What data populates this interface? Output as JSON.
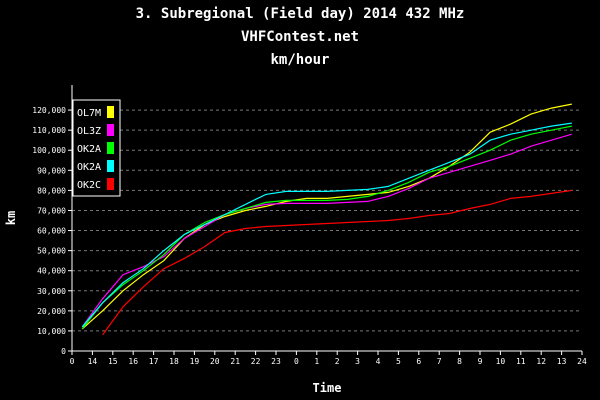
{
  "chart_data": {
    "type": "line",
    "title": "3. Subregional (Field day) 2014 432 MHz",
    "subtitle": "VHFContest.net",
    "unit_label": "km/hour",
    "xlabel": "Time",
    "ylabel": "km",
    "ylim": [
      0,
      130000
    ],
    "y_ticks": [
      "0",
      "10,000",
      "20,000",
      "30,000",
      "40,000",
      "50,000",
      "60,000",
      "70,000",
      "80,000",
      "90,000",
      "100,000",
      "110,000",
      "120,000"
    ],
    "x_ticks": [
      "0",
      "14",
      "15",
      "16",
      "17",
      "18",
      "19",
      "20",
      "21",
      "22",
      "23",
      "0",
      "1",
      "2",
      "3",
      "4",
      "5",
      "6",
      "7",
      "8",
      "9",
      "10",
      "11",
      "12",
      "13",
      "24"
    ],
    "grid": "horizontal-dashed",
    "legend_position": "top-left",
    "series": [
      {
        "name": "OL7M",
        "color": "#ffff00",
        "points": [
          [
            0.5,
            11000
          ],
          [
            1.5,
            20000
          ],
          [
            2.5,
            30000
          ],
          [
            3.5,
            38000
          ],
          [
            4.5,
            45000
          ],
          [
            5.5,
            56000
          ],
          [
            6.5,
            63000
          ],
          [
            7.5,
            67000
          ],
          [
            8.5,
            70000
          ],
          [
            9.5,
            72000
          ],
          [
            10.5,
            74500
          ],
          [
            11.5,
            76000
          ],
          [
            12.5,
            76000
          ],
          [
            13.5,
            77000
          ],
          [
            14.5,
            78000
          ],
          [
            15.5,
            79000
          ],
          [
            16.5,
            82000
          ],
          [
            17.5,
            86000
          ],
          [
            18.5,
            92000
          ],
          [
            19.5,
            99000
          ],
          [
            20.5,
            109000
          ],
          [
            21.5,
            113000
          ],
          [
            22.5,
            118000
          ],
          [
            23.5,
            121000
          ],
          [
            24.5,
            123000
          ]
        ]
      },
      {
        "name": "OL3Z",
        "color": "#ff00ff",
        "points": [
          [
            0.5,
            12000
          ],
          [
            1.5,
            26000
          ],
          [
            2.5,
            38000
          ],
          [
            3.5,
            42000
          ],
          [
            4.5,
            47000
          ],
          [
            5.5,
            56000
          ],
          [
            6.5,
            62000
          ],
          [
            7.5,
            68000
          ],
          [
            8.5,
            71000
          ],
          [
            9.5,
            73000
          ],
          [
            10.5,
            73500
          ],
          [
            11.5,
            73500
          ],
          [
            12.5,
            73500
          ],
          [
            13.5,
            74000
          ],
          [
            14.5,
            74500
          ],
          [
            15.5,
            77000
          ],
          [
            16.5,
            81000
          ],
          [
            17.5,
            86000
          ],
          [
            18.5,
            89000
          ],
          [
            19.5,
            92000
          ],
          [
            20.5,
            95000
          ],
          [
            21.5,
            98000
          ],
          [
            22.5,
            102000
          ],
          [
            23.5,
            105000
          ],
          [
            24.5,
            108000
          ]
        ]
      },
      {
        "name": "OK2A",
        "color": "#00ff00",
        "points": [
          [
            0.5,
            11000
          ],
          [
            1.5,
            24000
          ],
          [
            2.5,
            33000
          ],
          [
            3.5,
            40000
          ],
          [
            4.5,
            48000
          ],
          [
            5.5,
            58000
          ],
          [
            6.5,
            64000
          ],
          [
            7.5,
            68000
          ],
          [
            8.5,
            71000
          ],
          [
            9.5,
            74000
          ],
          [
            10.5,
            75000
          ],
          [
            11.5,
            75000
          ],
          [
            12.5,
            75000
          ],
          [
            13.5,
            75500
          ],
          [
            14.5,
            77000
          ],
          [
            15.5,
            80000
          ],
          [
            16.5,
            84000
          ],
          [
            17.5,
            89000
          ],
          [
            18.5,
            92000
          ],
          [
            19.5,
            96000
          ],
          [
            20.5,
            100000
          ],
          [
            21.5,
            105000
          ],
          [
            22.5,
            108000
          ],
          [
            23.5,
            110000
          ],
          [
            24.5,
            112000
          ]
        ]
      },
      {
        "name": "OK2A",
        "color": "#00ffff",
        "points": [
          [
            0.5,
            12000
          ],
          [
            1.5,
            24000
          ],
          [
            2.5,
            34000
          ],
          [
            3.5,
            41000
          ],
          [
            4.5,
            50000
          ],
          [
            5.5,
            58000
          ],
          [
            6.5,
            63000
          ],
          [
            7.5,
            68000
          ],
          [
            8.5,
            73000
          ],
          [
            9.5,
            78000
          ],
          [
            10.5,
            79500
          ],
          [
            11.5,
            79500
          ],
          [
            12.5,
            79500
          ],
          [
            13.5,
            80000
          ],
          [
            14.5,
            80500
          ],
          [
            15.5,
            82000
          ],
          [
            16.5,
            86000
          ],
          [
            17.5,
            90000
          ],
          [
            18.5,
            94000
          ],
          [
            19.5,
            98000
          ],
          [
            20.5,
            105000
          ],
          [
            21.5,
            108000
          ],
          [
            22.5,
            110000
          ],
          [
            23.5,
            112000
          ],
          [
            24.5,
            113500
          ]
        ]
      },
      {
        "name": "OK2C",
        "color": "#ff0000",
        "points": [
          [
            1.5,
            8000
          ],
          [
            2.5,
            22000
          ],
          [
            3.5,
            32000
          ],
          [
            4.5,
            41000
          ],
          [
            5.5,
            46000
          ],
          [
            6.5,
            52000
          ],
          [
            7.5,
            59000
          ],
          [
            8.5,
            61000
          ],
          [
            9.5,
            62000
          ],
          [
            10.5,
            62500
          ],
          [
            11.5,
            63000
          ],
          [
            12.5,
            63500
          ],
          [
            13.5,
            64000
          ],
          [
            14.5,
            64500
          ],
          [
            15.5,
            65000
          ],
          [
            16.5,
            66000
          ],
          [
            17.5,
            67500
          ],
          [
            18.5,
            68500
          ],
          [
            19.5,
            71000
          ],
          [
            20.5,
            73000
          ],
          [
            21.5,
            76000
          ],
          [
            22.5,
            77000
          ],
          [
            23.5,
            78500
          ],
          [
            24.5,
            80000
          ]
        ]
      }
    ]
  }
}
